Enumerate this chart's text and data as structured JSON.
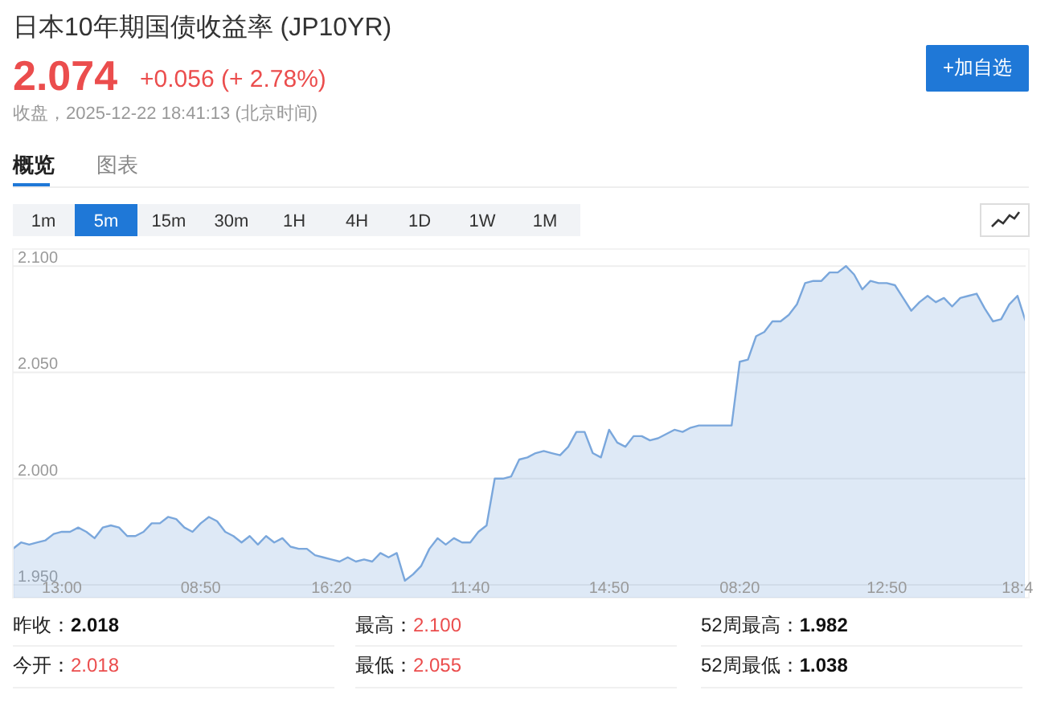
{
  "chart_data": {
    "type": "area",
    "title": "日本10年期国债收益率 (JP10YR)",
    "annotations": [
      "2.074",
      "+0.056 (+ 2.78%)",
      "收盘，2025-12-22 18:41:13 (北京时间)",
      "+加自选",
      "概览",
      "图表",
      "1m",
      "5m",
      "15m",
      "30m",
      "1H",
      "4H",
      "1D",
      "1W",
      "1M",
      "昨收：",
      "2.018",
      "最高：",
      "2.100",
      "52周最高：",
      "1.982",
      "今开：",
      "2.018",
      "最低：",
      "2.055",
      "52周最低：",
      "1.038"
    ],
    "categories": [
      null,
      null,
      null,
      null,
      null,
      null,
      "13:00",
      null,
      null,
      null,
      null,
      null,
      null,
      null,
      null,
      null,
      null,
      null,
      null,
      null,
      null,
      null,
      null,
      "08:50",
      null,
      null,
      null,
      null,
      null,
      null,
      null,
      null,
      null,
      null,
      null,
      null,
      null,
      null,
      null,
      "16:20",
      null,
      null,
      null,
      null,
      null,
      null,
      null,
      null,
      null,
      null,
      null,
      null,
      null,
      null,
      null,
      null,
      "11:40",
      null,
      null,
      null,
      null,
      null,
      null,
      null,
      null,
      null,
      null,
      null,
      null,
      null,
      null,
      null,
      null,
      "14:50",
      null,
      null,
      null,
      null,
      null,
      null,
      null,
      null,
      null,
      null,
      null,
      null,
      null,
      null,
      null,
      "08:20",
      null,
      null,
      null,
      null,
      null,
      null,
      null,
      null,
      null,
      null,
      null,
      null,
      null,
      null,
      null,
      null,
      null,
      "12:50",
      null,
      null,
      null,
      null,
      null,
      null,
      null,
      null,
      null,
      null,
      null,
      null,
      null,
      null,
      null,
      "18:4",
      null
    ],
    "values": [
      1.967,
      1.97,
      1.969,
      1.97,
      1.971,
      1.974,
      1.975,
      1.975,
      1.977,
      1.975,
      1.972,
      1.977,
      1.978,
      1.977,
      1.973,
      1.973,
      1.975,
      1.979,
      1.979,
      1.982,
      1.981,
      1.977,
      1.975,
      1.979,
      1.982,
      1.98,
      1.975,
      1.973,
      1.97,
      1.973,
      1.969,
      1.973,
      1.97,
      1.972,
      1.968,
      1.967,
      1.967,
      1.964,
      1.963,
      1.962,
      1.961,
      1.963,
      1.961,
      1.962,
      1.961,
      1.965,
      1.963,
      1.965,
      1.952,
      1.955,
      1.959,
      1.967,
      1.972,
      1.969,
      1.972,
      1.97,
      1.97,
      1.975,
      1.978,
      2.0,
      2.0,
      2.001,
      2.009,
      2.01,
      2.012,
      2.013,
      2.012,
      2.011,
      2.015,
      2.022,
      2.022,
      2.012,
      2.01,
      2.023,
      2.017,
      2.015,
      2.02,
      2.02,
      2.018,
      2.019,
      2.021,
      2.023,
      2.022,
      2.024,
      2.025,
      2.025,
      2.025,
      2.025,
      2.025,
      2.055,
      2.056,
      2.067,
      2.069,
      2.074,
      2.074,
      2.077,
      2.082,
      2.092,
      2.093,
      2.093,
      2.097,
      2.097,
      2.1,
      2.096,
      2.089,
      2.093,
      2.092,
      2.092,
      2.091,
      2.085,
      2.079,
      2.083,
      2.086,
      2.083,
      2.085,
      2.081,
      2.085,
      2.086,
      2.087,
      2.08,
      2.074,
      2.075,
      2.082,
      2.086,
      2.074
    ],
    "color": "#7aa7dc",
    "ylim": [
      1.944,
      2.108
    ],
    "yticks": [
      {
        "value": 1.95,
        "label": "1.950"
      },
      {
        "value": 2.0,
        "label": "2.000"
      },
      {
        "value": 2.05,
        "label": "2.050"
      },
      {
        "value": 2.1,
        "label": "2.100"
      }
    ],
    "grid": "y"
  }
}
